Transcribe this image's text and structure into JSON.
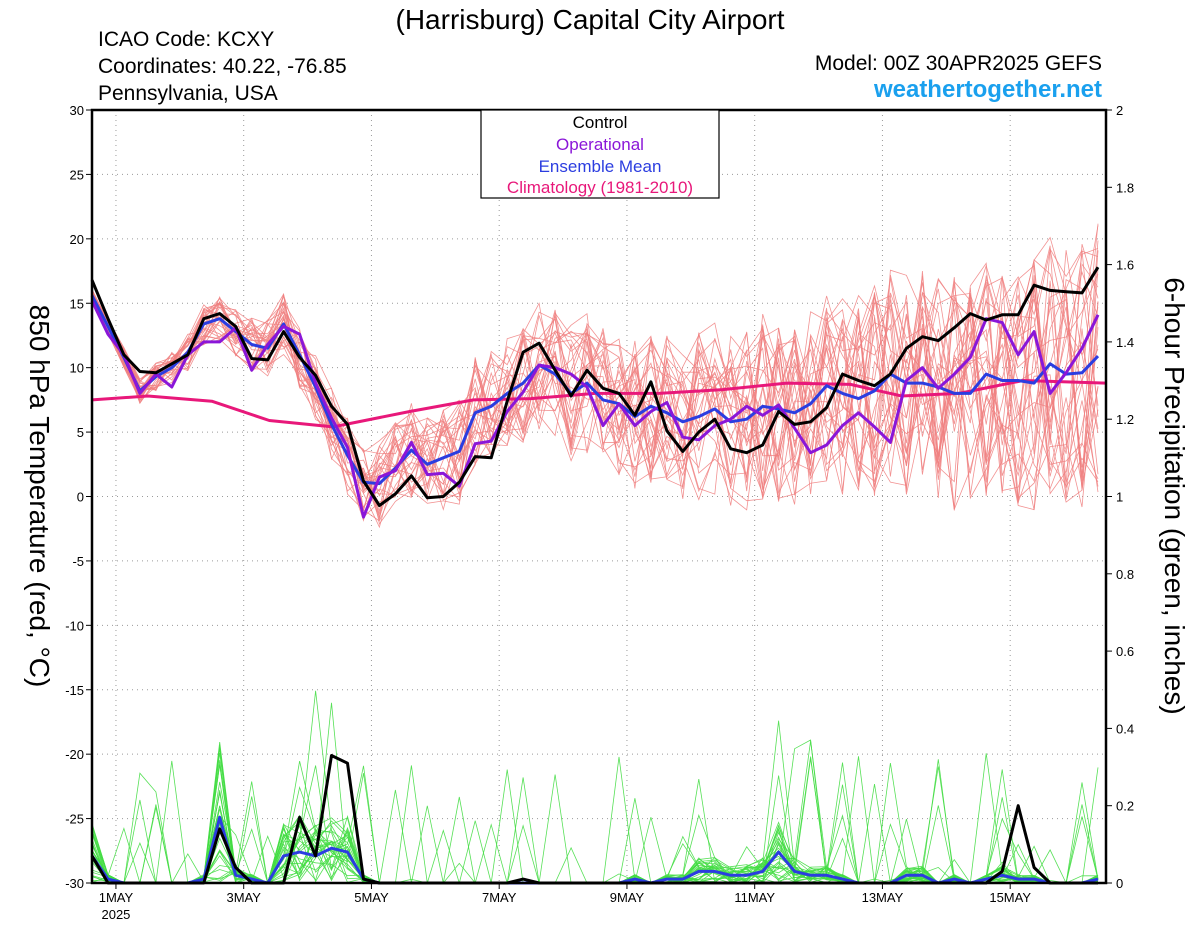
{
  "header": {
    "title": "(Harrisburg) Capital City Airport",
    "icao": "ICAO Code: KCXY",
    "coordinates": "Coordinates: 40.22, -76.85",
    "region": "Pennsylvania, USA",
    "model": "Model: 00Z 30APR2025 GEFS",
    "site": "weathertogether.net"
  },
  "colors": {
    "members_temp": "#f08080",
    "members_precip": "#44dd44",
    "control": "#000000",
    "operational": "#8a16d8",
    "ensemble_mean": "#2b3de0",
    "climatology": "#e8187a",
    "site": "#1aa0ee"
  },
  "chart_data": {
    "type": "line",
    "x_unit": "days since 1MAY 2025 00Z",
    "xlim": [
      -0.375,
      15.5
    ],
    "ylabel_left": "850 hPa Temperature (red, °C)",
    "ylabel_right": "6-hour Precipitation (green, inches)",
    "ylim_left": [
      -30,
      30
    ],
    "yticks_left": [
      30,
      25,
      20,
      15,
      10,
      5,
      0,
      -5,
      -10,
      -15,
      -20,
      -25,
      -30
    ],
    "ylim_right": [
      0,
      2
    ],
    "yticks_right": [
      "2",
      "1.8",
      "1.6",
      "1.4",
      "1.2",
      "1",
      "0.8",
      "0.6",
      "0.4",
      "0.2",
      "0"
    ],
    "xticks": [
      {
        "x": 0,
        "label": "1MAY",
        "sub": "2025"
      },
      {
        "x": 2,
        "label": "3MAY",
        "sub": ""
      },
      {
        "x": 4,
        "label": "5MAY",
        "sub": ""
      },
      {
        "x": 6,
        "label": "7MAY",
        "sub": ""
      },
      {
        "x": 8,
        "label": "9MAY",
        "sub": ""
      },
      {
        "x": 10,
        "label": "11MAY",
        "sub": ""
      },
      {
        "x": 12,
        "label": "13MAY",
        "sub": ""
      },
      {
        "x": 14,
        "label": "15MAY",
        "sub": ""
      }
    ],
    "grid": true,
    "legend_position": "top-center",
    "legend": [
      "Control",
      "Operational",
      "Ensemble Mean",
      "Climatology (1981-2010)"
    ],
    "x": [
      -0.375,
      -0.125,
      0.125,
      0.375,
      0.625,
      0.875,
      1.125,
      1.375,
      1.625,
      1.875,
      2.125,
      2.375,
      2.625,
      2.875,
      3.125,
      3.375,
      3.625,
      3.875,
      4.125,
      4.375,
      4.625,
      4.875,
      5.125,
      5.375,
      5.625,
      5.875,
      6.125,
      6.375,
      6.625,
      6.875,
      7.125,
      7.375,
      7.625,
      7.875,
      8.125,
      8.375,
      8.625,
      8.875,
      9.125,
      9.375,
      9.625,
      9.875,
      10.125,
      10.375,
      10.625,
      10.875,
      11.125,
      11.375,
      11.625,
      11.875,
      12.125,
      12.375,
      12.625,
      12.875,
      13.125,
      13.375,
      13.625,
      13.875,
      14.125,
      14.375,
      14.625,
      14.875,
      15.125,
      15.375
    ],
    "series": [
      {
        "name": "Control",
        "axis": "left",
        "values": [
          16.8,
          13.8,
          11.0,
          9.7,
          9.6,
          10.3,
          11.0,
          13.8,
          14.2,
          13.2,
          10.7,
          10.6,
          12.8,
          10.8,
          9.4,
          7.0,
          5.6,
          1.2,
          -0.7,
          0.2,
          1.6,
          -0.1,
          0.0,
          1.1,
          3.1,
          3.0,
          7.4,
          11.2,
          11.9,
          9.8,
          7.8,
          9.8,
          8.4,
          8.0,
          6.3,
          8.9,
          5.1,
          3.5,
          5.0,
          6.0,
          3.7,
          3.4,
          4.0,
          6.6,
          5.6,
          5.8,
          6.9,
          9.5,
          9.0,
          8.6,
          9.5,
          11.5,
          12.4,
          12.1,
          13.1,
          14.2,
          13.7,
          14.1,
          14.1,
          16.4,
          16.0,
          15.9,
          15.8,
          17.8
        ]
      },
      {
        "name": "Operational",
        "axis": "left",
        "values": [
          15.2,
          12.6,
          11.0,
          8.0,
          9.5,
          8.5,
          11.0,
          12.0,
          12.0,
          13.1,
          9.8,
          11.8,
          13.2,
          12.6,
          8.8,
          6.1,
          3.8,
          -1.6,
          1.5,
          2.0,
          4.2,
          1.7,
          1.8,
          0.8,
          4.1,
          4.3,
          6.6,
          8.1,
          10.2,
          10.0,
          9.5,
          8.5,
          5.5,
          7.2,
          5.5,
          6.6,
          7.3,
          4.6,
          4.4,
          5.5,
          6.0,
          7.0,
          6.3,
          7.1,
          5.3,
          3.4,
          4.0,
          5.5,
          6.5,
          5.4,
          4.2,
          9.0,
          10.0,
          8.4,
          9.5,
          10.8,
          13.8,
          13.5,
          11.0,
          12.8,
          8.0,
          9.6,
          11.5,
          14.1
        ]
      },
      {
        "name": "Ensemble Mean",
        "axis": "left",
        "values": [
          15.6,
          13.2,
          10.8,
          8.2,
          9.3,
          10.0,
          11.2,
          13.4,
          13.8,
          12.8,
          11.8,
          11.5,
          13.4,
          11.0,
          8.5,
          5.6,
          3.2,
          1.1,
          1.0,
          2.2,
          3.6,
          2.5,
          3.0,
          3.5,
          6.5,
          7.0,
          8.0,
          8.8,
          10.2,
          9.5,
          8.0,
          8.8,
          7.5,
          7.2,
          6.2,
          7.0,
          6.5,
          5.8,
          6.2,
          6.8,
          5.8,
          6.0,
          7.0,
          6.8,
          6.5,
          7.2,
          8.6,
          8.0,
          7.6,
          8.2,
          9.5,
          8.8,
          8.8,
          8.5,
          8.0,
          8.0,
          9.5,
          9.0,
          9.0,
          8.8,
          10.3,
          9.5,
          9.6,
          10.9
        ]
      },
      {
        "name": "Climatology (1981-2010)",
        "axis": "left",
        "x": [
          -0.375,
          0.5,
          1.5,
          2.4,
          3.4,
          4.6,
          5.6,
          6.5,
          7.5,
          8.5,
          9.5,
          10.5,
          11.5,
          12.3,
          13.2,
          14.2,
          15.5
        ],
        "values": [
          7.5,
          7.8,
          7.4,
          5.9,
          5.4,
          6.6,
          7.5,
          7.6,
          8.0,
          8.0,
          8.3,
          8.8,
          8.7,
          7.8,
          8.0,
          9.0,
          8.8
        ]
      },
      {
        "name": "Control",
        "axis": "right",
        "values": [
          0.07,
          0.0,
          0.0,
          0.0,
          0.0,
          0.0,
          0.0,
          0.0,
          0.14,
          0.04,
          0.0,
          0.0,
          0.0,
          0.17,
          0.07,
          0.33,
          0.31,
          0.01,
          0.0,
          0.0,
          0.0,
          0.0,
          0.0,
          0.0,
          0.0,
          0.0,
          0.0,
          0.01,
          0.0,
          0.0,
          0.0,
          0.0,
          0.0,
          0.0,
          0.0,
          0.0,
          0.0,
          0.0,
          0.0,
          0.0,
          0.0,
          0.0,
          0.0,
          0.0,
          0.0,
          0.0,
          0.0,
          0.0,
          0.0,
          0.0,
          0.0,
          0.0,
          0.0,
          0.0,
          0.0,
          0.0,
          0.0,
          0.03,
          0.2,
          0.04,
          0.0,
          0.0,
          0.0,
          0.0
        ]
      },
      {
        "name": "Ensemble Mean",
        "axis": "right",
        "values": [
          0.07,
          0.01,
          0.0,
          0.0,
          0.0,
          0.0,
          0.0,
          0.01,
          0.17,
          0.02,
          0.01,
          0.0,
          0.07,
          0.08,
          0.07,
          0.09,
          0.08,
          0.01,
          0.0,
          0.0,
          0.0,
          0.0,
          0.0,
          0.0,
          0.0,
          0.0,
          0.0,
          0.0,
          0.0,
          0.0,
          0.0,
          0.0,
          0.0,
          0.0,
          0.01,
          0.0,
          0.01,
          0.01,
          0.03,
          0.03,
          0.02,
          0.02,
          0.03,
          0.08,
          0.03,
          0.02,
          0.02,
          0.01,
          0.0,
          0.0,
          0.0,
          0.02,
          0.02,
          0.0,
          0.01,
          0.0,
          0.01,
          0.02,
          0.01,
          0.01,
          0.0,
          0.0,
          0.0,
          0.01
        ]
      }
    ]
  }
}
